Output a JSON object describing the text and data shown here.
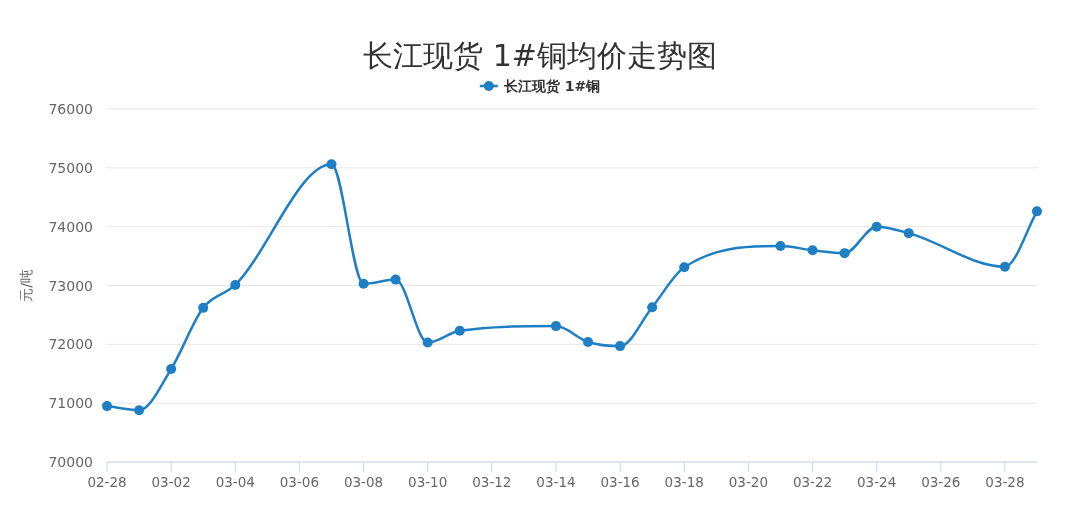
{
  "chart_data": {
    "type": "line",
    "title": "长江现货 1#铜均价走势图",
    "ylabel": "元/吨",
    "x": [
      "--02-28",
      "--03-01",
      "--03-02",
      "--03-03",
      "--03-04",
      "--03-07",
      "--03-08",
      "--03-09",
      "--03-10",
      "--03-11",
      "--03-14",
      "--03-15",
      "--03-16",
      "--03-17",
      "--03-18",
      "--03-21",
      "--03-22",
      "--03-23",
      "--03-24",
      "--03-25",
      "--03-28",
      "--03-29"
    ],
    "series": [
      {
        "name": "长江现货 1#铜",
        "color": "#1f7fc4",
        "values": [
          70950,
          70880,
          71580,
          72620,
          73010,
          75060,
          73030,
          73100,
          72030,
          72230,
          72310,
          72040,
          71970,
          72630,
          73310,
          73670,
          73600,
          73550,
          74000,
          73890,
          73320,
          74260
        ]
      }
    ],
    "xlim": [
      "--02-28",
      "--03-29"
    ],
    "xticks": [
      {
        "value": "--02-28",
        "label": "02-28"
      },
      {
        "value": "--03-02",
        "label": "03-02"
      },
      {
        "value": "--03-04",
        "label": "03-04"
      },
      {
        "value": "--03-06",
        "label": "03-06"
      },
      {
        "value": "--03-08",
        "label": "03-08"
      },
      {
        "value": "--03-10",
        "label": "03-10"
      },
      {
        "value": "--03-12",
        "label": "03-12"
      },
      {
        "value": "--03-14",
        "label": "03-14"
      },
      {
        "value": "--03-16",
        "label": "03-16"
      },
      {
        "value": "--03-18",
        "label": "03-18"
      },
      {
        "value": "--03-20",
        "label": "03-20"
      },
      {
        "value": "--03-22",
        "label": "03-22"
      },
      {
        "value": "--03-24",
        "label": "03-24"
      },
      {
        "value": "--03-26",
        "label": "03-26"
      },
      {
        "value": "--03-28",
        "label": "03-28"
      }
    ],
    "ylim": [
      70000,
      76000
    ],
    "yticks": [
      70000,
      71000,
      72000,
      73000,
      74000,
      75000,
      76000
    ],
    "grid": "y",
    "legend": "top",
    "marker": "circle",
    "line_style": "solid"
  }
}
